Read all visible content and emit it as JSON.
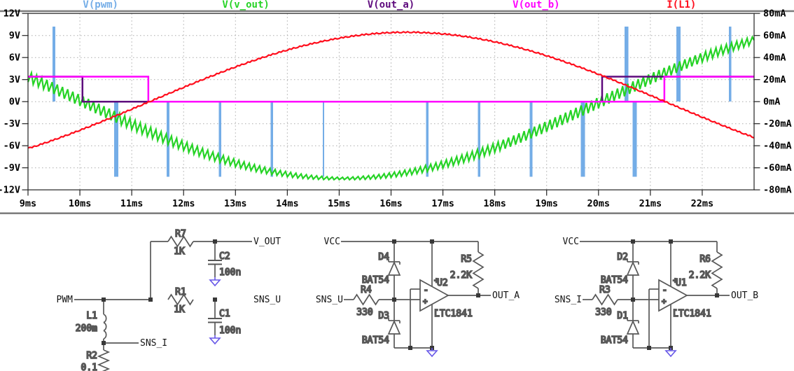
{
  "plot": {
    "legend": [
      {
        "label": "V(pwm)",
        "color": "#74ADE7"
      },
      {
        "label": "V(v_out)",
        "color": "#26D326"
      },
      {
        "label": "V(out_a)",
        "color": "#5E0A7D"
      },
      {
        "label": "V(out_b)",
        "color": "#FF00FF"
      },
      {
        "label": "I(L1)",
        "color": "#FF0D1C"
      }
    ],
    "left_axis_labels": [
      "12V",
      "9V",
      "6V",
      "3V",
      "0V",
      "-3V",
      "-6V",
      "-9V",
      "-12V"
    ],
    "right_axis_labels": [
      "80mA",
      "60mA",
      "40mA",
      "20mA",
      "0mA",
      "-20mA",
      "-40mA",
      "-60mA",
      "-80mA"
    ],
    "x_axis_labels": [
      "9ms",
      "10ms",
      "11ms",
      "12ms",
      "13ms",
      "14ms",
      "15ms",
      "16ms",
      "17ms",
      "18ms",
      "19ms",
      "20ms",
      "21ms",
      "22ms"
    ],
    "grid_color": "#ABABAB",
    "border_color": "#7F7F7F"
  },
  "chart_data": {
    "type": "line",
    "title": "",
    "x": {
      "unit": "ms",
      "min": 9,
      "max": 23,
      "tick_step": 1,
      "ticks": [
        9,
        10,
        11,
        12,
        13,
        14,
        15,
        16,
        17,
        18,
        19,
        20,
        21,
        22
      ]
    },
    "y_left": {
      "unit": "V",
      "min": -12,
      "max": 12,
      "tick_step": 3
    },
    "y_right": {
      "unit": "mA",
      "min": -80,
      "max": 80,
      "tick_step": 20
    },
    "grid": true,
    "legend_position": "top",
    "series": [
      {
        "name": "V(pwm)",
        "axis": "left",
        "kind": "pwm",
        "high_V": 10.2,
        "low_V": -10.2,
        "mid_V": 0,
        "carrier_kHz": 10,
        "positive_band_ms": [
          [
            9.0,
            10.05
          ],
          [
            20.04,
            23.0
          ]
        ],
        "negative_band_ms": [
          [
            10.2,
            20.75
          ]
        ],
        "dense_ms": [
          [
            10.2,
            11.6
          ],
          [
            19.5,
            20.75
          ],
          [
            20.55,
            21.6
          ]
        ],
        "sparse_ms": [
          [
            14.2,
            15.9
          ]
        ]
      },
      {
        "name": "V(v_out)",
        "axis": "left",
        "kind": "sine_with_ripple",
        "amplitude_V": 10.45,
        "period_ms": 20,
        "zero_cross_falling_ms": 10.05,
        "min_V": -10.45,
        "min_at_ms": 15.05,
        "ripple_carrier_kHz": 10,
        "ripple_V_max": 1.5,
        "samples": [
          {
            "ms": 9,
            "V": 3.4
          },
          {
            "ms": 10.05,
            "V": 0
          },
          {
            "ms": 15.05,
            "V": -10.45
          },
          {
            "ms": 20.07,
            "V": 0
          },
          {
            "ms": 23,
            "V": 8.3
          }
        ]
      },
      {
        "name": "V(out_a)",
        "axis": "left",
        "kind": "square",
        "high_V": 3.4,
        "low_V": 0,
        "edges_ms": [
          {
            "ms": 10.05,
            "to": "low"
          },
          {
            "ms": 20.07,
            "to": "high"
          }
        ]
      },
      {
        "name": "V(out_b)",
        "axis": "left",
        "kind": "square",
        "high_V": 3.4,
        "low_V": 0,
        "edges_ms": [
          {
            "ms": 11.32,
            "to": "low"
          },
          {
            "ms": 21.27,
            "to": "high"
          }
        ]
      },
      {
        "name": "I(L1)",
        "axis": "right",
        "kind": "sine",
        "amplitude_mA": 63,
        "period_ms": 19.9,
        "zero_cross_rising_ms": 11.34,
        "peak_mA": 63,
        "peak_at_ms": 16.3,
        "samples": [
          {
            "ms": 9,
            "mA": -41
          },
          {
            "ms": 11.34,
            "mA": 0
          },
          {
            "ms": 16.3,
            "mA": 63
          },
          {
            "ms": 21.27,
            "mA": 0
          },
          {
            "ms": 23,
            "mA": -33
          }
        ]
      }
    ]
  },
  "schematic": {
    "wire_color": "#585858",
    "ground_color": "#6757E8",
    "junction_color": "#383838",
    "nets": {
      "pwm": "PWM",
      "v_out": "V_OUT",
      "sns_u": "SNS_U",
      "sns_i": "SNS_I",
      "vcc": "VCC",
      "out_a": "OUT_A",
      "out_b": "OUT_B"
    },
    "components": {
      "R7": {
        "ref": "R7",
        "value": "1K"
      },
      "R1": {
        "ref": "R1",
        "value": "1K"
      },
      "C2": {
        "ref": "C2",
        "value": "100n"
      },
      "C1": {
        "ref": "C1",
        "value": "100n"
      },
      "L1": {
        "ref": "L1",
        "value": "200m"
      },
      "R2": {
        "ref": "R2",
        "value": "0.1"
      },
      "R4": {
        "ref": "R4",
        "value": "330"
      },
      "D4": {
        "ref": "D4",
        "value": "BAT54"
      },
      "D3": {
        "ref": "D3",
        "value": "BAT54"
      },
      "U2": {
        "ref": "U2",
        "value": "LTC1841"
      },
      "R5": {
        "ref": "R5",
        "value": "2.2K"
      },
      "R3": {
        "ref": "R3",
        "value": "330"
      },
      "D2": {
        "ref": "D2",
        "value": "BAT54"
      },
      "D1": {
        "ref": "D1",
        "value": "BAT54"
      },
      "U1": {
        "ref": "U1",
        "value": "LTC1841"
      },
      "R6": {
        "ref": "R6",
        "value": "2.2K"
      }
    },
    "opamp_pin_labels": {
      "minus": "-",
      "plus": "+"
    }
  }
}
